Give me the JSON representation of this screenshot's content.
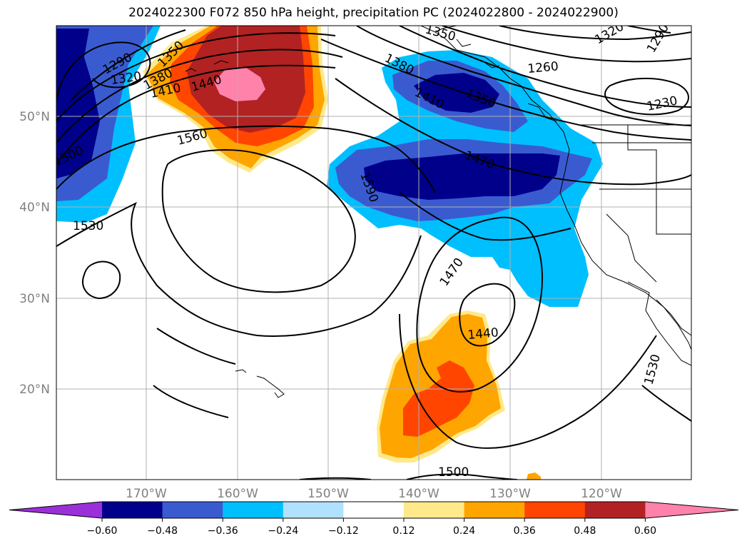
{
  "title": "2024022300 F072 850 hPa height, precipitation PC (2024022800 - 2024022900)",
  "latitude_ticks": [
    "50°N",
    "40°N",
    "30°N",
    "20°N"
  ],
  "longitude_ticks": [
    "170°W",
    "160°W",
    "150°W",
    "140°W",
    "130°W",
    "120°W"
  ],
  "contour_labels": [
    "1290",
    "1320",
    "1350",
    "1380",
    "1410",
    "1440",
    "1560",
    "1530",
    "1590",
    "1380",
    "1410",
    "1350",
    "1470",
    "1260",
    "1230",
    "1290",
    "1320",
    "1350",
    "1470",
    "1440",
    "1530",
    "1500",
    "1500"
  ],
  "colorbar": {
    "ticks": [
      "−0.60",
      "−0.48",
      "−0.36",
      "−0.24",
      "−0.12",
      "0.12",
      "0.24",
      "0.36",
      "0.48",
      "0.60"
    ],
    "colors": [
      "#9b30d9",
      "#00008b",
      "#3a5bd0",
      "#00bfff",
      "#b0e2ff",
      "#ffffff",
      "#ffe98a",
      "#ffa500",
      "#ff4500",
      "#b22222",
      "#ff82ab"
    ]
  }
}
